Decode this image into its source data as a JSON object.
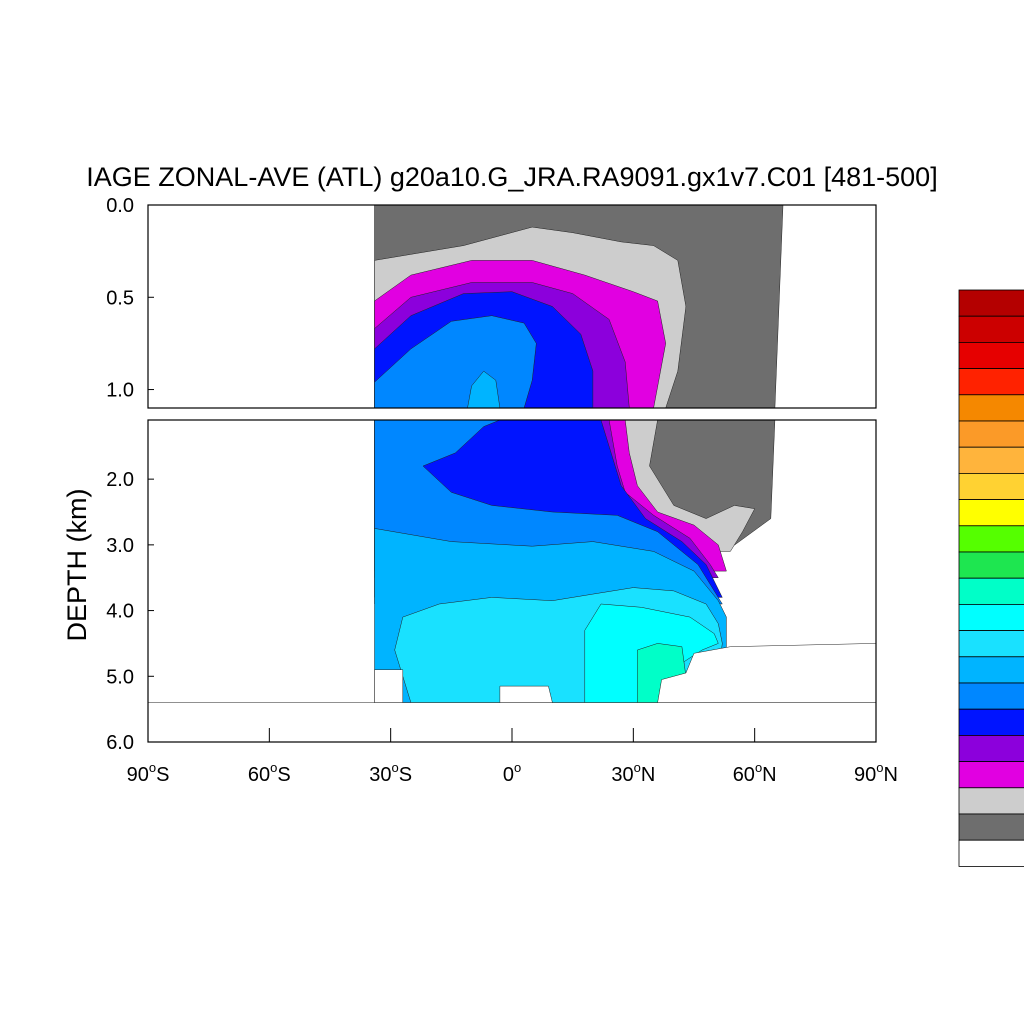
{
  "chart_data": {
    "type": "heatmap",
    "title": "IAGE ZONAL-AVE (ATL) g20a10.G_JRA.RA9091.gx1v7.C01 [481-500]",
    "ylabel": "DEPTH (km)",
    "xlabel": "",
    "x_ticks": [
      {
        "value": -90,
        "label": "90",
        "hemi": "S"
      },
      {
        "value": -60,
        "label": "60",
        "hemi": "S"
      },
      {
        "value": -30,
        "label": "30",
        "hemi": "S"
      },
      {
        "value": 0,
        "label": "0",
        "hemi": ""
      },
      {
        "value": 30,
        "label": "30",
        "hemi": "N"
      },
      {
        "value": 60,
        "label": "60",
        "hemi": "N"
      },
      {
        "value": 90,
        "label": "90",
        "hemi": "N"
      }
    ],
    "xlim": [
      -90,
      90
    ],
    "panels": [
      {
        "ylim": [
          0,
          1.1
        ],
        "y_ticks": [
          {
            "value": 0.0,
            "label": "0.0"
          },
          {
            "value": 0.5,
            "label": "0.5"
          },
          {
            "value": 1.0,
            "label": "1.0"
          }
        ]
      },
      {
        "ylim": [
          1.1,
          6.0
        ],
        "y_ticks": [
          {
            "value": 2.0,
            "label": "2.0"
          },
          {
            "value": 3.0,
            "label": "3.0"
          },
          {
            "value": 4.0,
            "label": "4.0"
          },
          {
            "value": 5.0,
            "label": "5.0"
          },
          {
            "value": 6.0,
            "label": "6.0"
          }
        ]
      }
    ],
    "colorbar": [
      "#b40000",
      "#cc0000",
      "#e60000",
      "#ff2200",
      "#f58800",
      "#fb9a28",
      "#ffb43c",
      "#ffd232",
      "#ffff00",
      "#55ff00",
      "#1ee650",
      "#00ffc8",
      "#00ffff",
      "#19e1ff",
      "#00b4ff",
      "#0087ff",
      "#0014ff",
      "#8c00dc",
      "#e100e1",
      "#cdcdcd",
      "#6e6e6e",
      "#ffffff"
    ],
    "fields": {
      "upper": [
        {
          "color": "#6e6e6e",
          "poly": [
            [
              -34,
              0
            ],
            [
              67,
              0
            ],
            [
              65,
              1.1
            ],
            [
              -34,
              1.1
            ]
          ]
        },
        {
          "color": "#cdcdcd",
          "poly": [
            [
              -34,
              0.3
            ],
            [
              -12,
              0.22
            ],
            [
              5,
              0.12
            ],
            [
              15,
              0.15
            ],
            [
              27,
              0.2
            ],
            [
              35,
              0.22
            ],
            [
              41,
              0.3
            ],
            [
              43,
              0.55
            ],
            [
              41,
              0.9
            ],
            [
              38,
              1.1
            ],
            [
              -34,
              1.1
            ]
          ]
        },
        {
          "color": "#e100e1",
          "poly": [
            [
              -34,
              0.52
            ],
            [
              -25,
              0.38
            ],
            [
              -10,
              0.3
            ],
            [
              5,
              0.3
            ],
            [
              18,
              0.38
            ],
            [
              30,
              0.47
            ],
            [
              36,
              0.52
            ],
            [
              38,
              0.75
            ],
            [
              35,
              1.1
            ],
            [
              -34,
              1.1
            ]
          ]
        },
        {
          "color": "#8c00dc",
          "poly": [
            [
              -34,
              0.67
            ],
            [
              -25,
              0.5
            ],
            [
              -10,
              0.42
            ],
            [
              5,
              0.42
            ],
            [
              15,
              0.48
            ],
            [
              24,
              0.62
            ],
            [
              28,
              0.85
            ],
            [
              29,
              1.1
            ],
            [
              -34,
              1.1
            ]
          ]
        },
        {
          "color": "#0014ff",
          "poly": [
            [
              -34,
              0.78
            ],
            [
              -25,
              0.6
            ],
            [
              -12,
              0.48
            ],
            [
              0,
              0.47
            ],
            [
              10,
              0.55
            ],
            [
              17,
              0.7
            ],
            [
              20,
              0.9
            ],
            [
              20,
              1.1
            ],
            [
              -34,
              1.1
            ]
          ]
        },
        {
          "color": "#0087ff",
          "poly": [
            [
              -34,
              0.96
            ],
            [
              -25,
              0.78
            ],
            [
              -15,
              0.63
            ],
            [
              -5,
              0.6
            ],
            [
              3,
              0.64
            ],
            [
              6,
              0.75
            ],
            [
              5,
              0.95
            ],
            [
              3,
              1.1
            ],
            [
              -34,
              1.1
            ]
          ]
        },
        {
          "color": "#00b4ff",
          "poly": [
            [
              -11,
              1.1
            ],
            [
              -10,
              0.98
            ],
            [
              -7,
              0.9
            ],
            [
              -4,
              0.95
            ],
            [
              -3,
              1.1
            ]
          ]
        }
      ],
      "lower": [
        {
          "color": "#6e6e6e",
          "poly": [
            [
              -34,
              1.1
            ],
            [
              65,
              1.1
            ],
            [
              64,
              2.6
            ],
            [
              54,
              3.05
            ],
            [
              40,
              3.2
            ],
            [
              -34,
              3.2
            ]
          ]
        },
        {
          "color": "#cdcdcd",
          "poly": [
            [
              -34,
              1.1
            ],
            [
              36,
              1.1
            ],
            [
              34,
              1.8
            ],
            [
              40,
              2.4
            ],
            [
              48,
              2.6
            ],
            [
              55,
              2.4
            ],
            [
              60,
              2.45
            ],
            [
              57,
              2.8
            ],
            [
              54,
              3.1
            ],
            [
              -34,
              3.1
            ]
          ]
        },
        {
          "color": "#e100e1",
          "poly": [
            [
              -34,
              1.1
            ],
            [
              28,
              1.1
            ],
            [
              29,
              1.6
            ],
            [
              31,
              2.1
            ],
            [
              36,
              2.5
            ],
            [
              45,
              2.7
            ],
            [
              51,
              3.0
            ],
            [
              53,
              3.4
            ],
            [
              -34,
              3.4
            ]
          ]
        },
        {
          "color": "#8c00dc",
          "poly": [
            [
              -34,
              1.1
            ],
            [
              24,
              1.1
            ],
            [
              26,
              1.8
            ],
            [
              28,
              2.2
            ],
            [
              35,
              2.55
            ],
            [
              44,
              2.9
            ],
            [
              49,
              3.3
            ],
            [
              51,
              3.5
            ],
            [
              -34,
              3.5
            ]
          ]
        },
        {
          "color": "#0014ff",
          "poly": [
            [
              -34,
              1.1
            ],
            [
              22,
              1.1
            ],
            [
              27,
              2.1
            ],
            [
              33,
              2.6
            ],
            [
              42,
              2.95
            ],
            [
              48,
              3.3
            ],
            [
              52,
              3.8
            ],
            [
              -34,
              3.8
            ]
          ]
        },
        {
          "color": "#0087ff",
          "poly": [
            [
              -34,
              1.1
            ],
            [
              -3,
              1.1
            ],
            [
              -7,
              1.2
            ],
            [
              -14,
              1.6
            ],
            [
              -22,
              1.8
            ],
            [
              -15,
              2.2
            ],
            [
              -5,
              2.4
            ],
            [
              10,
              2.5
            ],
            [
              26,
              2.55
            ],
            [
              36,
              2.8
            ],
            [
              46,
              3.3
            ],
            [
              52,
              3.9
            ],
            [
              -34,
              3.9
            ]
          ]
        },
        {
          "color": "#00b4ff",
          "poly": [
            [
              -34,
              2.75
            ],
            [
              -15,
              2.95
            ],
            [
              5,
              3.02
            ],
            [
              20,
              2.95
            ],
            [
              35,
              3.1
            ],
            [
              45,
              3.4
            ],
            [
              51,
              3.85
            ],
            [
              53,
              4.1
            ],
            [
              53,
              5.4
            ],
            [
              -34,
              5.4
            ]
          ]
        },
        {
          "color": "#19e1ff",
          "poly": [
            [
              -29,
              4.6
            ],
            [
              -27,
              4.1
            ],
            [
              -18,
              3.9
            ],
            [
              -5,
              3.8
            ],
            [
              10,
              3.85
            ],
            [
              20,
              3.75
            ],
            [
              30,
              3.65
            ],
            [
              40,
              3.7
            ],
            [
              48,
              3.9
            ],
            [
              51,
              4.2
            ],
            [
              52,
              4.5
            ],
            [
              50,
              5.4
            ],
            [
              -25,
              5.4
            ]
          ]
        },
        {
          "color": "#00ffff",
          "poly": [
            [
              18,
              5.4
            ],
            [
              18,
              4.3
            ],
            [
              22,
              3.9
            ],
            [
              32,
              3.95
            ],
            [
              44,
              4.1
            ],
            [
              50,
              4.35
            ],
            [
              51,
              4.5
            ],
            [
              47,
              4.6
            ],
            [
              42,
              4.8
            ],
            [
              36,
              5.4
            ]
          ]
        },
        {
          "color": "#00ffc8",
          "poly": [
            [
              31,
              5.4
            ],
            [
              31,
              4.6
            ],
            [
              36,
              4.5
            ],
            [
              42,
              4.55
            ],
            [
              43,
              5.0
            ],
            [
              38,
              5.4
            ]
          ]
        },
        {
          "color": "#ffffff",
          "poly": [
            [
              -90,
              5.4
            ],
            [
              90,
              5.4
            ],
            [
              90,
              6.0
            ],
            [
              -90,
              6.0
            ]
          ]
        },
        {
          "color": "#ffffff",
          "poly": [
            [
              -34,
              4.9
            ],
            [
              -27,
              4.9
            ],
            [
              -27,
              5.4
            ],
            [
              -34,
              5.4
            ]
          ]
        },
        {
          "color": "#ffffff",
          "poly": [
            [
              -3,
              5.15
            ],
            [
              9,
              5.15
            ],
            [
              10,
              5.4
            ],
            [
              -3,
              5.4
            ]
          ]
        },
        {
          "color": "#ffffff",
          "poly": [
            [
              36,
              5.4
            ],
            [
              37,
              5.05
            ],
            [
              43,
              4.95
            ],
            [
              45,
              4.65
            ],
            [
              54,
              4.55
            ],
            [
              90,
              4.5
            ],
            [
              90,
              5.4
            ]
          ]
        }
      ]
    }
  }
}
